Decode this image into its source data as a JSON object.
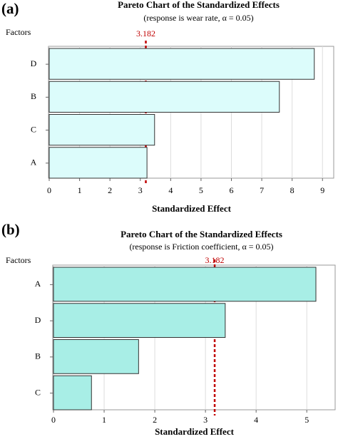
{
  "chart_data": [
    {
      "type": "bar",
      "orientation": "horizontal",
      "panel_label": "(a)",
      "title": "Pareto Chart of the Standardized Effects",
      "subtitle": "(response is wear rate, α = 0.05)",
      "ylabel": "Factors",
      "xlabel": "Standardized Effect",
      "categories": [
        "D",
        "B",
        "C",
        "A"
      ],
      "values": [
        8.73,
        7.58,
        3.47,
        3.22
      ],
      "color": "#dcfcfb",
      "xlim": [
        0,
        9.37
      ],
      "xticks": [
        0,
        1,
        2,
        3,
        4,
        5,
        6,
        7,
        8,
        9
      ],
      "ref_line": 3.182,
      "ref_color": "#c00000",
      "grid": true
    },
    {
      "type": "bar",
      "orientation": "horizontal",
      "panel_label": "(b)",
      "title": "Pareto Chart of the Standardized Effects",
      "subtitle": "(response is Friction coefficient, α = 0.05)",
      "ylabel": "Factors",
      "xlabel": "Standardized Effect",
      "categories": [
        "A",
        "D",
        "B",
        "C"
      ],
      "values": [
        5.18,
        3.39,
        1.68,
        0.75
      ],
      "color": "#a8eee6",
      "xlim": [
        0,
        5.56
      ],
      "xticks": [
        0,
        1,
        2,
        3,
        4,
        5
      ],
      "ref_line": 3.182,
      "ref_color": "#c00000",
      "grid": true
    }
  ]
}
